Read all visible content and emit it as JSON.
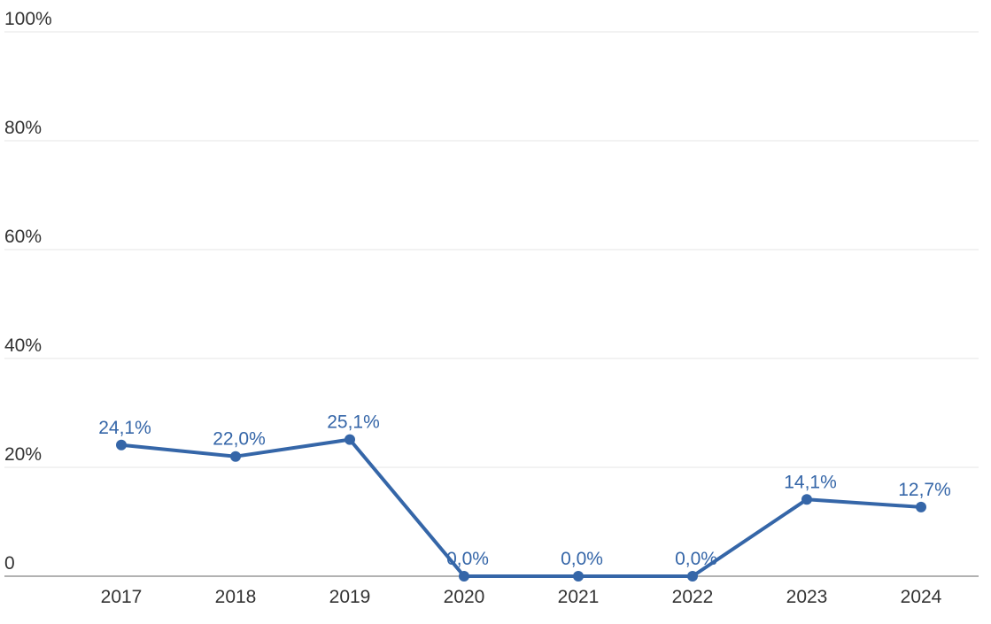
{
  "chart_data": {
    "type": "line",
    "title": "",
    "xlabel": "",
    "ylabel": "",
    "categories": [
      "2017",
      "2018",
      "2019",
      "2020",
      "2021",
      "2022",
      "2023",
      "2024"
    ],
    "values": [
      24.1,
      22.0,
      25.1,
      0.0,
      0.0,
      0.0,
      14.1,
      12.7
    ],
    "data_labels": [
      "24,1%",
      "22,0%",
      "25,1%",
      "0,0%",
      "0,0%",
      "0,0%",
      "14,1%",
      "12,7%"
    ],
    "ylim": [
      0,
      100
    ],
    "yticks": [
      0,
      20,
      40,
      60,
      80,
      100
    ],
    "ytick_labels": [
      "0",
      "20%",
      "40%",
      "60%",
      "80%",
      "100%"
    ],
    "grid": true,
    "legend": "none",
    "colors": {
      "series": "#3566a8",
      "grid": "#e6e6e6",
      "axis": "#666666",
      "text": "#333333"
    }
  }
}
